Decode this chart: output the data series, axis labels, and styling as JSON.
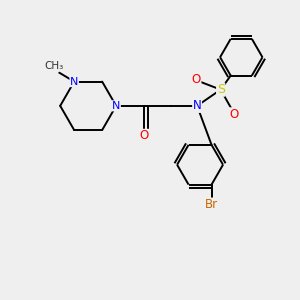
{
  "background_color": "#efefef",
  "bond_color": "#000000",
  "atom_colors": {
    "N": "#0000ff",
    "O": "#ff0000",
    "S": "#cccc00",
    "Br": "#cc6600",
    "C": "#000000"
  },
  "figsize": [
    3.0,
    3.0
  ],
  "dpi": 100,
  "xlim": [
    0,
    10
  ],
  "ylim": [
    0,
    10
  ],
  "bond_lw": 1.4,
  "double_sep": 0.13
}
